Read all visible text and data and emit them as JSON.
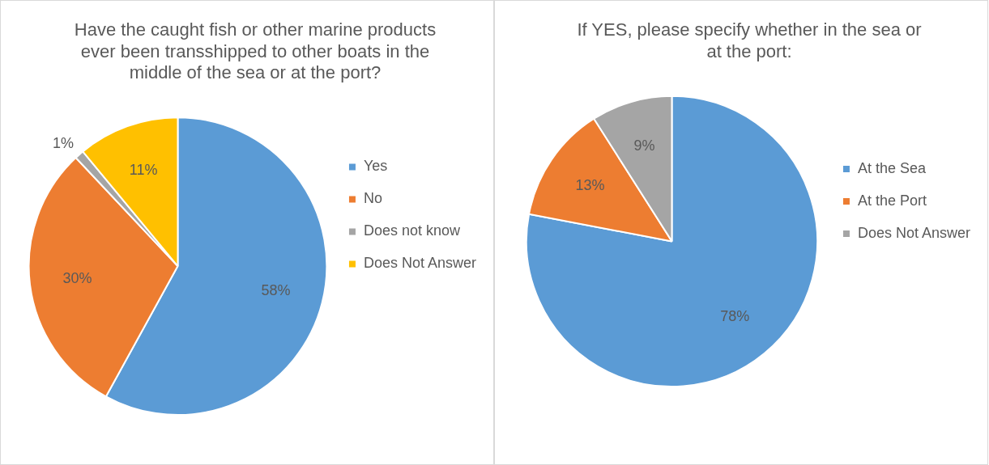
{
  "chart_data": [
    {
      "type": "pie",
      "title": "Have the caught fish or other marine products ever been transshipped to other boats in the middle of the sea or at the port?",
      "categories": [
        "Yes",
        "No",
        "Does not know",
        "Does Not Answer"
      ],
      "values": [
        58,
        30,
        1,
        11
      ],
      "colors": [
        "#5b9bd5",
        "#ed7d31",
        "#a5a5a5",
        "#ffc000"
      ],
      "value_labels": [
        "58%",
        "30%",
        "1%",
        "11%"
      ],
      "legend": "right"
    },
    {
      "type": "pie",
      "title": "If YES, please specify whether in the sea or at the port:",
      "categories": [
        "At the Sea",
        "At the Port",
        "Does Not Answer"
      ],
      "values": [
        78,
        13,
        9
      ],
      "colors": [
        "#5b9bd5",
        "#ed7d31",
        "#a5a5a5"
      ],
      "value_labels": [
        "78%",
        "13%",
        "9%"
      ],
      "legend": "right"
    }
  ]
}
